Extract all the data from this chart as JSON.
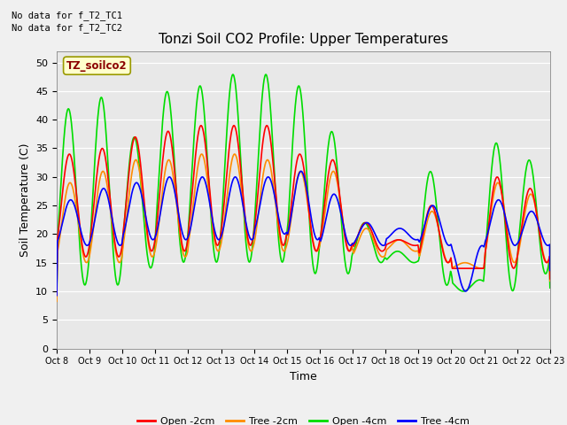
{
  "title": "Tonzi Soil CO2 Profile: Upper Temperatures",
  "xlabel": "Time",
  "ylabel": "Soil Temperature (C)",
  "note1": "No data for f_T2_TC1",
  "note2": "No data for f_T2_TC2",
  "box_label": "TZ_soilco2",
  "ylim": [
    0,
    52
  ],
  "yticks": [
    0,
    5,
    10,
    15,
    20,
    25,
    30,
    35,
    40,
    45,
    50
  ],
  "xtick_labels": [
    "Oct 8",
    "Oct 9",
    "Oct 10",
    "Oct 11",
    "Oct 12",
    "Oct 13",
    "Oct 14",
    "Oct 15",
    "Oct 16",
    "Oct 17",
    "Oct 18",
    "Oct 19",
    "Oct 20",
    "Oct 21",
    "Oct 22",
    "Oct 23"
  ],
  "legend_labels": [
    "Open -2cm",
    "Tree -2cm",
    "Open -4cm",
    "Tree -4cm"
  ],
  "legend_colors": [
    "#ff0000",
    "#ff8c00",
    "#00dd00",
    "#0000ff"
  ],
  "fig_bg_color": "#f0f0f0",
  "plot_bg_color": "#e8e8e8",
  "n_days": 15,
  "pts_per_day": 96,
  "green_peaks": [
    42,
    44,
    37,
    45,
    46,
    48,
    48,
    46,
    38,
    22,
    17,
    31,
    10,
    36,
    33
  ],
  "green_troughs": [
    11,
    11,
    14,
    15,
    15,
    15,
    15,
    13,
    13,
    15,
    15,
    11,
    12,
    10,
    13
  ],
  "red_peaks": [
    34,
    35,
    37,
    38,
    39,
    39,
    39,
    34,
    33,
    22,
    19,
    25,
    14,
    30,
    28
  ],
  "red_troughs": [
    16,
    16,
    17,
    17,
    18,
    18,
    18,
    17,
    17,
    17,
    18,
    15,
    14,
    14,
    15
  ],
  "orange_peaks": [
    29,
    31,
    33,
    33,
    34,
    34,
    33,
    31,
    31,
    21,
    19,
    24,
    15,
    29,
    27
  ],
  "orange_troughs": [
    15,
    15,
    16,
    16,
    17,
    17,
    17,
    17,
    17,
    16,
    17,
    15,
    14,
    15,
    15
  ],
  "blue_peaks": [
    26,
    28,
    29,
    30,
    30,
    30,
    30,
    31,
    27,
    22,
    21,
    25,
    10,
    26,
    24
  ],
  "blue_troughs": [
    18,
    18,
    19,
    19,
    19,
    19,
    20,
    19,
    18,
    18,
    19,
    18,
    18,
    18,
    18
  ]
}
